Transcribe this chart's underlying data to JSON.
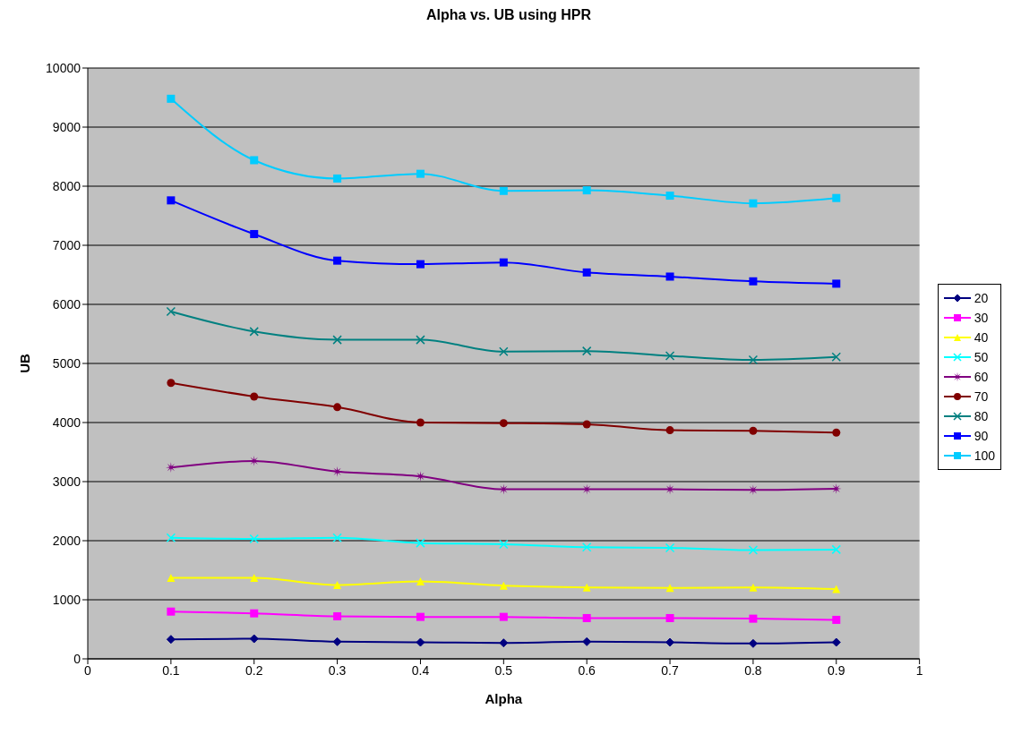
{
  "chart_data": {
    "type": "line",
    "title": "Alpha vs. UB using HPR",
    "xlabel": "Alpha",
    "ylabel": "UB",
    "x": [
      0.1,
      0.2,
      0.3,
      0.4,
      0.5,
      0.6,
      0.7,
      0.8,
      0.9
    ],
    "xlim": [
      0,
      1
    ],
    "xticks": [
      0,
      0.1,
      0.2,
      0.3,
      0.4,
      0.5,
      0.6,
      0.7,
      0.8,
      0.9,
      1
    ],
    "ylim": [
      0,
      10000
    ],
    "yticks": [
      0,
      1000,
      2000,
      3000,
      4000,
      5000,
      6000,
      7000,
      8000,
      9000,
      10000
    ],
    "grid": "y",
    "legend": "right",
    "series": [
      {
        "name": "20",
        "color": "#000080",
        "marker": "diamond",
        "values": [
          330,
          340,
          290,
          280,
          270,
          290,
          280,
          260,
          280
        ]
      },
      {
        "name": "30",
        "color": "#ff00ff",
        "marker": "square",
        "values": [
          800,
          770,
          720,
          710,
          710,
          690,
          690,
          680,
          660
        ]
      },
      {
        "name": "40",
        "color": "#ffff00",
        "marker": "triangle",
        "values": [
          1370,
          1370,
          1250,
          1310,
          1240,
          1210,
          1200,
          1210,
          1180
        ]
      },
      {
        "name": "50",
        "color": "#00ffff",
        "marker": "cross",
        "values": [
          2050,
          2030,
          2050,
          1960,
          1940,
          1890,
          1880,
          1840,
          1850
        ]
      },
      {
        "name": "60",
        "color": "#800080",
        "marker": "star",
        "values": [
          3240,
          3350,
          3170,
          3090,
          2870,
          2870,
          2870,
          2860,
          2880
        ]
      },
      {
        "name": "70",
        "color": "#800000",
        "marker": "circle",
        "values": [
          4670,
          4440,
          4260,
          4000,
          3990,
          3970,
          3870,
          3860,
          3830
        ]
      },
      {
        "name": "80",
        "color": "#008080",
        "marker": "cross",
        "values": [
          5880,
          5540,
          5400,
          5400,
          5200,
          5210,
          5130,
          5060,
          5110
        ]
      },
      {
        "name": "90",
        "color": "#0000ff",
        "marker": "square",
        "values": [
          7760,
          7190,
          6740,
          6680,
          6710,
          6540,
          6470,
          6390,
          6350
        ]
      },
      {
        "name": "100",
        "color": "#00ccff",
        "marker": "square",
        "values": [
          9480,
          8440,
          8130,
          8210,
          7920,
          7930,
          7840,
          7710,
          7800
        ]
      }
    ]
  }
}
